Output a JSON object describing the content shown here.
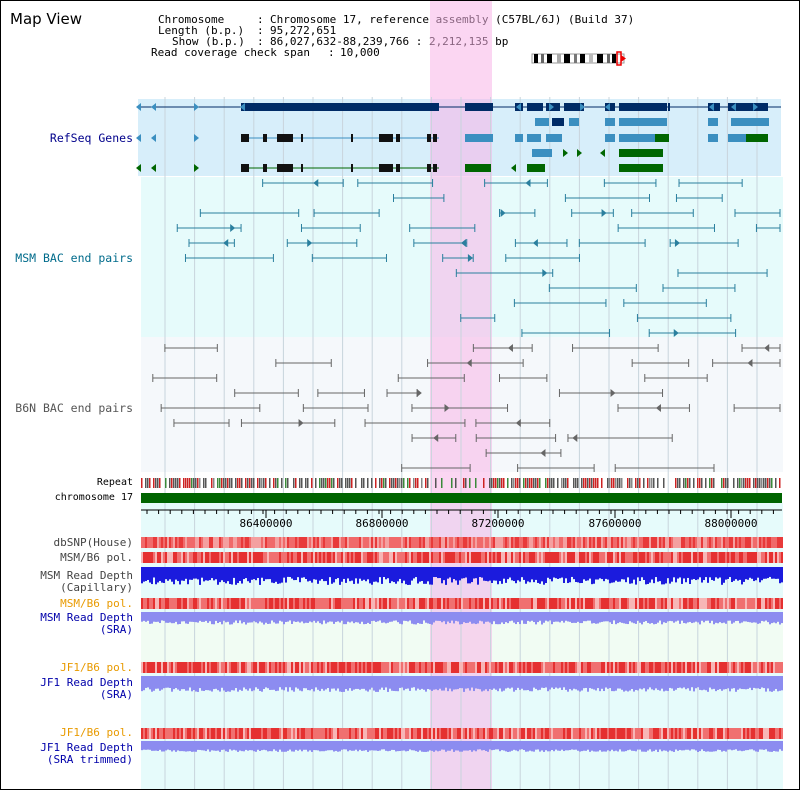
{
  "window": {
    "title": "Map View"
  },
  "info": {
    "chromosome_label": "Chromosome",
    "chromosome_value": "Chromosome 17, reference assembly (C57BL/6J) (Build 37)",
    "length_label": "Length (b.p.)",
    "length_value": "95,272,651",
    "show_label": "Show (b.p.)",
    "show_value": "86,027,632-88,239,766 : 2,212,135 bp",
    "coverage_label": "Read coverage check span",
    "coverage_value": "10,000"
  },
  "tracks": {
    "refseq": {
      "label": "RefSeq Genes",
      "color": "#00008b"
    },
    "msm_bac": {
      "label": "MSM BAC end pairs",
      "color": "#006b8b"
    },
    "b6n_bac": {
      "label": "B6N BAC end pairs",
      "color": "#555555"
    },
    "repeat": {
      "label": "Repeat"
    },
    "chromosome": {
      "label": "chromosome 17",
      "color": "#006400"
    },
    "dbsnp": {
      "label": "dbSNP(House)"
    },
    "msm_b6_pol_1": {
      "label": "MSM/B6 pol."
    },
    "msm_depth_cap": {
      "label_1": "MSM Read Depth",
      "label_2": "(Capillary)"
    },
    "msm_b6_pol_2": {
      "label": "MSM/B6 pol."
    },
    "msm_depth_sra": {
      "label_1": "MSM Read Depth",
      "label_2": "(SRA)"
    },
    "jf1_b6_pol_1": {
      "label": "JF1/B6 pol."
    },
    "jf1_depth_sra": {
      "label_1": "JF1 Read Depth",
      "label_2": "(SRA)"
    },
    "jf1_b6_pol_2": {
      "label": "JF1/B6 pol."
    },
    "jf1_depth_trim": {
      "label_1": "JF1 Read Depth",
      "label_2": "(SRA trimmed)"
    }
  },
  "axis": {
    "ticks": [
      "86400000",
      "86800000",
      "87200000",
      "87600000",
      "88000000"
    ]
  },
  "colors": {
    "gene_dark": "#002b66",
    "gene_mid": "#3b8fc0",
    "gene_green": "#006600",
    "msm_line": "#2a7f9e",
    "b6n_line": "#666666",
    "pol_red": "#e83a3a",
    "depth_blue": "#1b1bdd",
    "depth_light": "#8c8cf0",
    "highlight": "#f8b4e8"
  }
}
